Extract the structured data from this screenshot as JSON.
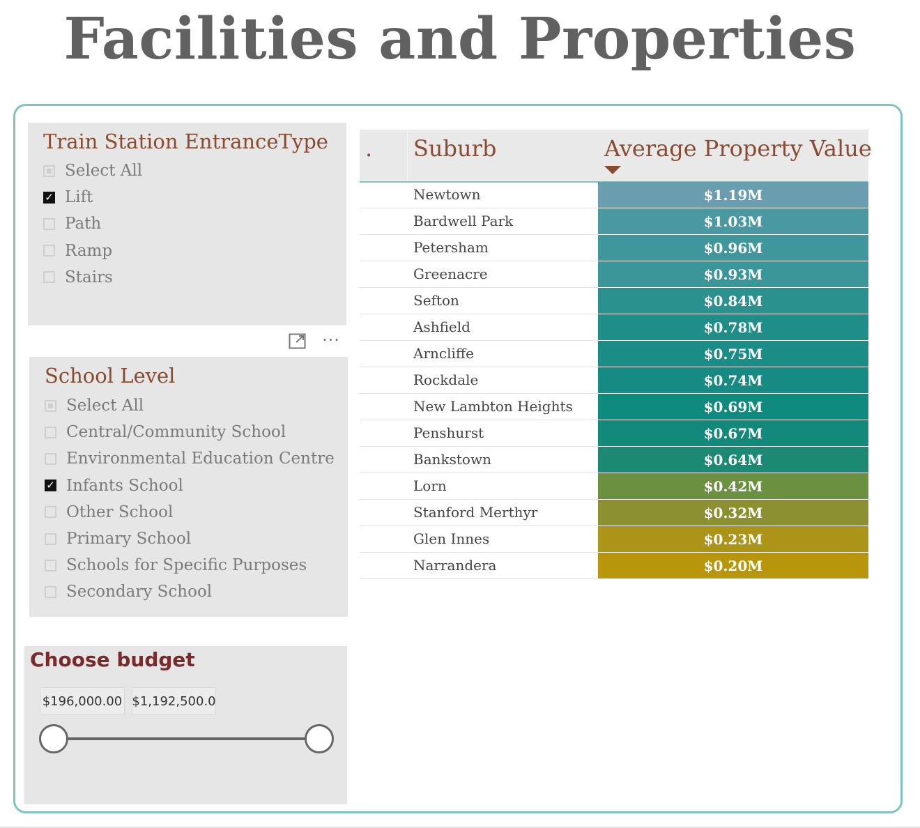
{
  "page": {
    "title": "Facilities and Properties"
  },
  "train_slicer": {
    "title": "Train Station EntranceType",
    "options": [
      {
        "label": "Select All",
        "state": "partial"
      },
      {
        "label": "Lift",
        "state": "checked"
      },
      {
        "label": "Path",
        "state": "unchecked"
      },
      {
        "label": "Ramp",
        "state": "unchecked"
      },
      {
        "label": "Stairs",
        "state": "unchecked"
      }
    ]
  },
  "visual_header": {
    "focus_icon": "focus-mode-icon",
    "more_icon": "more-options-icon",
    "more_glyph": "···"
  },
  "school_slicer": {
    "title": "School Level",
    "options": [
      {
        "label": "Select All",
        "state": "partial"
      },
      {
        "label": "Central/Community School",
        "state": "unchecked"
      },
      {
        "label": "Environmental Education Centre",
        "state": "unchecked"
      },
      {
        "label": "Infants School",
        "state": "checked"
      },
      {
        "label": "Other School",
        "state": "unchecked"
      },
      {
        "label": "Primary School",
        "state": "unchecked"
      },
      {
        "label": "Schools for Specific Purposes",
        "state": "unchecked"
      },
      {
        "label": "Secondary School",
        "state": "unchecked"
      }
    ]
  },
  "table": {
    "columns": [
      ".",
      "Suburb",
      "Average Property Value"
    ],
    "sort_indicator": "sort-descending-icon",
    "rows": [
      {
        "suburb": "Newtown",
        "value": "$1.19M",
        "color": "#6a9daf"
      },
      {
        "suburb": "Bardwell Park",
        "value": "$1.03M",
        "color": "#4a99a2"
      },
      {
        "suburb": "Petersham",
        "value": "$0.96M",
        "color": "#3f979c"
      },
      {
        "suburb": "Greenacre",
        "value": "$0.93M",
        "color": "#3a9699"
      },
      {
        "suburb": "Sefton",
        "value": "$0.84M",
        "color": "#2a918f"
      },
      {
        "suburb": "Ashfield",
        "value": "$0.78M",
        "color": "#1f8e89"
      },
      {
        "suburb": "Arncliffe",
        "value": "$0.75M",
        "color": "#1b8d86"
      },
      {
        "suburb": "Rockdale",
        "value": "$0.74M",
        "color": "#168b83"
      },
      {
        "suburb": "New Lambton Heights",
        "value": "$0.69M",
        "color": "#0f8a7e"
      },
      {
        "suburb": "Penshurst",
        "value": "$0.67M",
        "color": "#13897b"
      },
      {
        "suburb": "Bankstown",
        "value": "$0.64M",
        "color": "#1c8a72"
      },
      {
        "suburb": "Lorn",
        "value": "$0.42M",
        "color": "#6a9040"
      },
      {
        "suburb": "Stanford Merthyr",
        "value": "$0.32M",
        "color": "#8c9030"
      },
      {
        "suburb": "Glen Innes",
        "value": "$0.23M",
        "color": "#ac9418"
      },
      {
        "suburb": "Narrandera",
        "value": "$0.20M",
        "color": "#b8960c"
      }
    ]
  },
  "budget": {
    "title": "Choose budget",
    "min_value": "$196,000.00",
    "max_value": "$1,192,500.0"
  }
}
